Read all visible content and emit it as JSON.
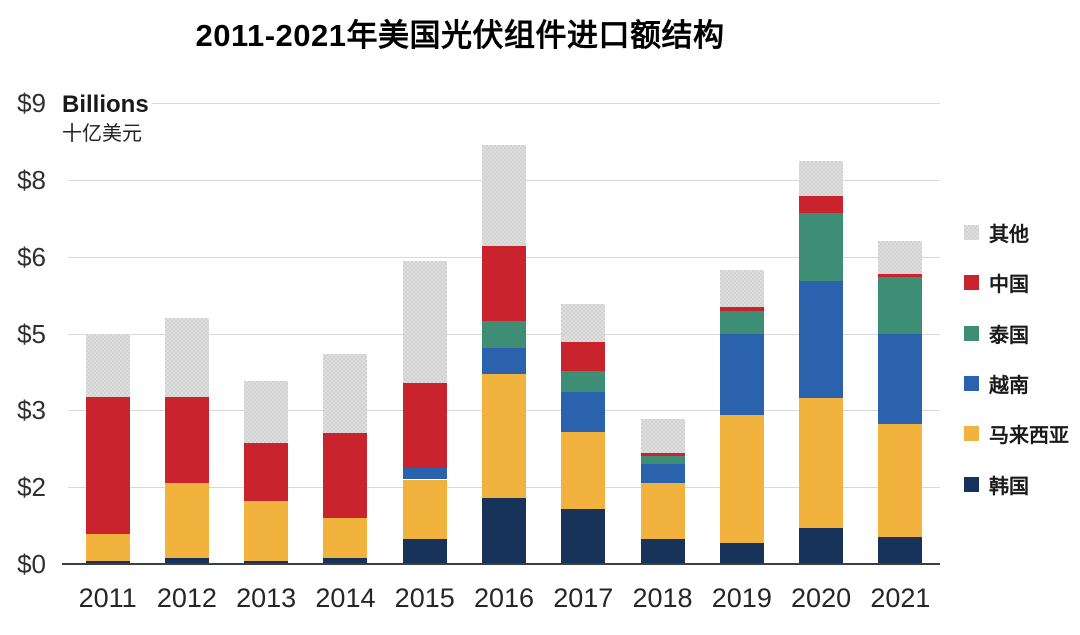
{
  "title": "2011-2021年美国光伏组件进口额结构",
  "y_axis": {
    "unit_label": "Billions",
    "unit_label_zh": "十亿美元",
    "tick_labels": [
      "$9",
      "$8",
      "$6",
      "$5",
      "$3",
      "$2",
      "$0"
    ],
    "tick_values": [
      9,
      8,
      6,
      5,
      3,
      2,
      0
    ]
  },
  "chart_data": {
    "type": "bar",
    "stacked": true,
    "title": "2011-2021年美国光伏组件进口额结构",
    "ylabel": "Billions 十亿美元",
    "ylim": [
      0,
      9
    ],
    "grid": true,
    "legend_position": "right",
    "categories": [
      "2011",
      "2012",
      "2013",
      "2014",
      "2015",
      "2016",
      "2017",
      "2018",
      "2019",
      "2020",
      "2021"
    ],
    "series": [
      {
        "name": "韩国",
        "color": "#17335a",
        "values": [
          0.08,
          0.16,
          0.08,
          0.16,
          0.65,
          1.73,
          1.42,
          0.65,
          0.56,
          0.95,
          0.7
        ]
      },
      {
        "name": "马来西亚",
        "color": "#f2b23e",
        "values": [
          0.71,
          1.9,
          1.55,
          1.05,
          1.45,
          2.22,
          1.3,
          1.4,
          2.38,
          2.37,
          2.12
        ]
      },
      {
        "name": "越南",
        "color": "#2b62ae",
        "values": [
          0.0,
          0.0,
          0.0,
          0.0,
          0.15,
          0.67,
          0.76,
          0.25,
          2.06,
          2.37,
          2.18
        ]
      },
      {
        "name": "泰国",
        "color": "#3e8e76",
        "values": [
          0.0,
          0.0,
          0.0,
          0.0,
          0.0,
          0.54,
          0.55,
          0.1,
          0.29,
          1.45,
          0.73
        ]
      },
      {
        "name": "中国",
        "color": "#c9232e",
        "values": [
          2.57,
          1.28,
          0.95,
          1.49,
          1.47,
          1.12,
          0.76,
          0.04,
          0.06,
          0.43,
          0.04
        ]
      },
      {
        "name": "其他",
        "color": "#d7d7d7",
        "pattern": "checker",
        "values": [
          1.63,
          1.86,
          1.19,
          1.77,
          2.22,
          2.17,
          0.59,
          0.45,
          0.48,
          0.68,
          0.64
        ]
      }
    ],
    "totals": [
      4.99,
      5.2,
      3.77,
      4.47,
      5.94,
      8.45,
      5.38,
      2.89,
      5.83,
      8.25,
      6.41
    ]
  }
}
